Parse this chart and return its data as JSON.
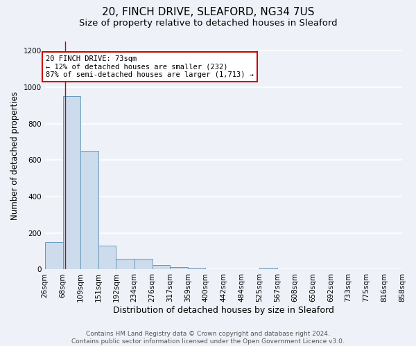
{
  "title1": "20, FINCH DRIVE, SLEAFORD, NG34 7US",
  "title2": "Size of property relative to detached houses in Sleaford",
  "xlabel": "Distribution of detached houses by size in Sleaford",
  "ylabel": "Number of detached properties",
  "bin_edges": [
    26,
    68,
    109,
    151,
    192,
    234,
    276,
    317,
    359,
    400,
    442,
    484,
    525,
    567,
    608,
    650,
    692,
    733,
    775,
    816,
    858
  ],
  "bar_heights": [
    150,
    950,
    650,
    130,
    60,
    60,
    25,
    15,
    10,
    0,
    0,
    0,
    10,
    0,
    0,
    0,
    0,
    0,
    0,
    0
  ],
  "bar_color": "#ccdcec",
  "bar_edge_color": "#6699bb",
  "bg_color": "#eef2f8",
  "grid_color": "#ffffff",
  "property_line_x": 73,
  "property_line_color": "#cc0000",
  "annotation_text": "20 FINCH DRIVE: 73sqm\n← 12% of detached houses are smaller (232)\n87% of semi-detached houses are larger (1,713) →",
  "annotation_box_color": "#cc0000",
  "annotation_fill_color": "#ffffff",
  "ylim": [
    0,
    1250
  ],
  "yticks": [
    0,
    200,
    400,
    600,
    800,
    1000,
    1200
  ],
  "footer": "Contains HM Land Registry data © Crown copyright and database right 2024.\nContains public sector information licensed under the Open Government Licence v3.0.",
  "title1_fontsize": 11,
  "title2_fontsize": 9.5,
  "xlabel_fontsize": 9,
  "ylabel_fontsize": 8.5,
  "tick_fontsize": 7.5,
  "footer_fontsize": 6.5,
  "ann_fontsize": 7.5
}
